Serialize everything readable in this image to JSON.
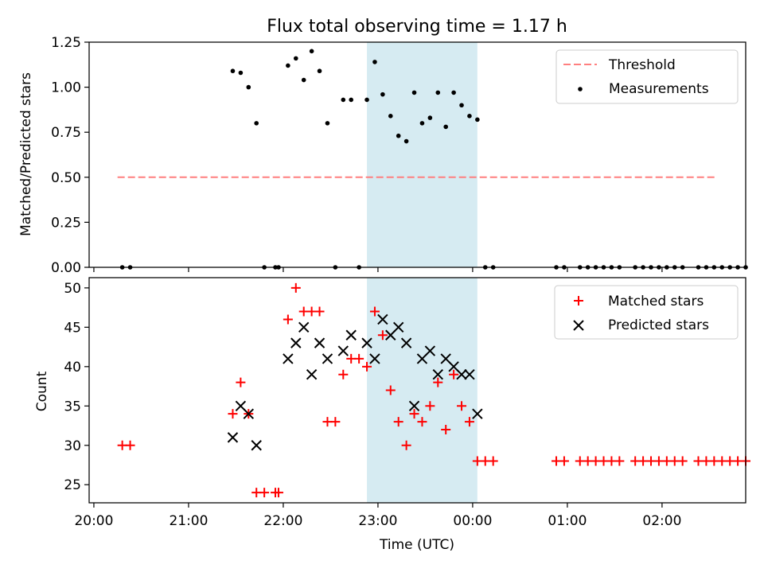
{
  "title": "Flux total observing time = 1.17 h",
  "colors": {
    "threshold": "#ff7f7f",
    "measurements": "#000000",
    "matched": "#ff0000",
    "predicted": "#000000",
    "shade": "#add8e6"
  },
  "chart_data": [
    {
      "type": "scatter",
      "ylabel": "Matched/Predicted stars",
      "ylim": [
        0,
        1.25
      ],
      "xlim": [
        "19:57",
        "02:53"
      ],
      "yticks": [
        0,
        0.25,
        0.5,
        0.75,
        1.0,
        1.25
      ],
      "ytick_labels": [
        "0.00",
        "0.25",
        "0.50",
        "0.75",
        "1.00",
        "1.25"
      ],
      "shaded_interval": [
        "22:53",
        "00:03"
      ],
      "legend": {
        "position": "top-right",
        "entries": [
          "Threshold",
          "Measurements"
        ]
      },
      "threshold": {
        "name": "Threshold",
        "y": 0.5,
        "x": [
          "20:15",
          "02:35"
        ],
        "style": "dashed"
      },
      "series": [
        {
          "name": "Measurements",
          "marker": "dot",
          "points": [
            [
              "20:18",
              0.0
            ],
            [
              "20:23",
              0.0
            ],
            [
              "21:28",
              1.09
            ],
            [
              "21:33",
              1.08
            ],
            [
              "21:38",
              1.0
            ],
            [
              "21:43",
              0.8
            ],
            [
              "21:48",
              0.0
            ],
            [
              "21:55",
              0.0
            ],
            [
              "21:57",
              0.0
            ],
            [
              "22:03",
              1.12
            ],
            [
              "22:08",
              1.16
            ],
            [
              "22:13",
              1.04
            ],
            [
              "22:18",
              1.2
            ],
            [
              "22:23",
              1.09
            ],
            [
              "22:28",
              0.8
            ],
            [
              "22:33",
              0.0
            ],
            [
              "22:38",
              0.93
            ],
            [
              "22:43",
              0.93
            ],
            [
              "22:48",
              0.0
            ],
            [
              "22:53",
              0.93
            ],
            [
              "22:58",
              1.14
            ],
            [
              "23:03",
              0.96
            ],
            [
              "23:08",
              0.84
            ],
            [
              "23:13",
              0.73
            ],
            [
              "23:18",
              0.7
            ],
            [
              "23:23",
              0.97
            ],
            [
              "23:28",
              0.8
            ],
            [
              "23:33",
              0.83
            ],
            [
              "23:38",
              0.97
            ],
            [
              "23:43",
              0.78
            ],
            [
              "23:48",
              0.97
            ],
            [
              "23:53",
              0.9
            ],
            [
              "23:58",
              0.84
            ],
            [
              "00:03",
              0.82
            ],
            [
              "00:08",
              0.0
            ],
            [
              "00:13",
              0.0
            ],
            [
              "00:53",
              0.0
            ],
            [
              "00:58",
              0.0
            ],
            [
              "01:08",
              0.0
            ],
            [
              "01:13",
              0.0
            ],
            [
              "01:18",
              0.0
            ],
            [
              "01:23",
              0.0
            ],
            [
              "01:28",
              0.0
            ],
            [
              "01:33",
              0.0
            ],
            [
              "01:43",
              0.0
            ],
            [
              "01:48",
              0.0
            ],
            [
              "01:53",
              0.0
            ],
            [
              "01:58",
              0.0
            ],
            [
              "02:03",
              0.0
            ],
            [
              "02:08",
              0.0
            ],
            [
              "02:13",
              0.0
            ],
            [
              "02:23",
              0.0
            ],
            [
              "02:28",
              0.0
            ],
            [
              "02:33",
              0.0
            ],
            [
              "02:38",
              0.0
            ],
            [
              "02:43",
              0.0
            ],
            [
              "02:48",
              0.0
            ],
            [
              "02:53",
              0.0
            ]
          ]
        }
      ]
    },
    {
      "type": "scatter",
      "xlabel": "Time (UTC)",
      "ylabel": "Count",
      "ylim": [
        22.7,
        51.3
      ],
      "yticks": [
        25,
        30,
        35,
        40,
        45,
        50
      ],
      "ytick_labels": [
        "25",
        "30",
        "35",
        "40",
        "45",
        "50"
      ],
      "xlim": [
        "19:57",
        "02:53"
      ],
      "xticks": [
        "20:00",
        "21:00",
        "22:00",
        "23:00",
        "00:00",
        "01:00",
        "02:00"
      ],
      "xtick_labels": [
        "20:00",
        "21:00",
        "22:00",
        "23:00",
        "00:00",
        "01:00",
        "02:00"
      ],
      "shaded_interval": [
        "22:53",
        "00:03"
      ],
      "legend": {
        "position": "top-right",
        "entries": [
          "Matched stars",
          "Predicted stars"
        ]
      },
      "series": [
        {
          "name": "Matched stars",
          "marker": "plus",
          "points": [
            [
              "20:18",
              30
            ],
            [
              "20:23",
              30
            ],
            [
              "21:28",
              34
            ],
            [
              "21:33",
              38
            ],
            [
              "21:38",
              34
            ],
            [
              "21:43",
              24
            ],
            [
              "21:48",
              24
            ],
            [
              "21:55",
              24
            ],
            [
              "21:57",
              24
            ],
            [
              "22:03",
              46
            ],
            [
              "22:08",
              50
            ],
            [
              "22:13",
              47
            ],
            [
              "22:18",
              47
            ],
            [
              "22:23",
              47
            ],
            [
              "22:28",
              33
            ],
            [
              "22:33",
              33
            ],
            [
              "22:38",
              39
            ],
            [
              "22:43",
              41
            ],
            [
              "22:48",
              41
            ],
            [
              "22:53",
              40
            ],
            [
              "22:58",
              47
            ],
            [
              "23:03",
              44
            ],
            [
              "23:08",
              37
            ],
            [
              "23:13",
              33
            ],
            [
              "23:18",
              30
            ],
            [
              "23:23",
              34
            ],
            [
              "23:28",
              33
            ],
            [
              "23:33",
              35
            ],
            [
              "23:38",
              38
            ],
            [
              "23:43",
              32
            ],
            [
              "23:48",
              39
            ],
            [
              "23:53",
              35
            ],
            [
              "23:58",
              33
            ],
            [
              "00:03",
              28
            ],
            [
              "00:08",
              28
            ],
            [
              "00:13",
              28
            ],
            [
              "00:53",
              28
            ],
            [
              "00:58",
              28
            ],
            [
              "01:08",
              28
            ],
            [
              "01:13",
              28
            ],
            [
              "01:18",
              28
            ],
            [
              "01:23",
              28
            ],
            [
              "01:28",
              28
            ],
            [
              "01:33",
              28
            ],
            [
              "01:43",
              28
            ],
            [
              "01:48",
              28
            ],
            [
              "01:53",
              28
            ],
            [
              "01:58",
              28
            ],
            [
              "02:03",
              28
            ],
            [
              "02:08",
              28
            ],
            [
              "02:13",
              28
            ],
            [
              "02:23",
              28
            ],
            [
              "02:28",
              28
            ],
            [
              "02:33",
              28
            ],
            [
              "02:38",
              28
            ],
            [
              "02:43",
              28
            ],
            [
              "02:48",
              28
            ],
            [
              "02:53",
              28
            ]
          ]
        },
        {
          "name": "Predicted stars",
          "marker": "x",
          "points": [
            [
              "21:28",
              31
            ],
            [
              "21:33",
              35
            ],
            [
              "21:38",
              34
            ],
            [
              "21:43",
              30
            ],
            [
              "22:03",
              41
            ],
            [
              "22:08",
              43
            ],
            [
              "22:13",
              45
            ],
            [
              "22:18",
              39
            ],
            [
              "22:23",
              43
            ],
            [
              "22:28",
              41
            ],
            [
              "22:38",
              42
            ],
            [
              "22:43",
              44
            ],
            [
              "22:53",
              43
            ],
            [
              "22:58",
              41
            ],
            [
              "23:03",
              46
            ],
            [
              "23:08",
              44
            ],
            [
              "23:13",
              45
            ],
            [
              "23:18",
              43
            ],
            [
              "23:23",
              35
            ],
            [
              "23:28",
              41
            ],
            [
              "23:33",
              42
            ],
            [
              "23:38",
              39
            ],
            [
              "23:43",
              41
            ],
            [
              "23:48",
              40
            ],
            [
              "23:53",
              39
            ],
            [
              "23:58",
              39
            ],
            [
              "00:03",
              34
            ]
          ]
        }
      ]
    }
  ]
}
